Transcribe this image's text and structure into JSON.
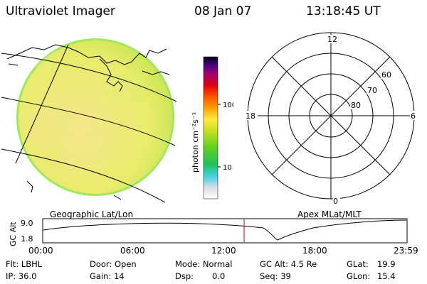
{
  "header": {
    "title": "Ultraviolet Imager",
    "date": "08 Jan 07",
    "time": "13:18:45 UT"
  },
  "colorbar": {
    "unit_label": "photon cm⁻²s⁻¹",
    "ticks": [
      "100",
      "10"
    ]
  },
  "panels": {
    "geo_label": "Geographic Lat/Lon",
    "apex_label": "Apex MLat/MLT"
  },
  "polar": {
    "mlt_labels": [
      "12",
      "18",
      "6",
      "0"
    ],
    "lat_labels": [
      "60",
      "70",
      "80"
    ]
  },
  "timeline": {
    "axis_title": "GC Alt",
    "y_ticks": [
      "9.0",
      "1.8"
    ],
    "x_ticks": [
      "00:00",
      "06:00",
      "12:00",
      "18:00",
      "23:59"
    ],
    "marker_color": "#cc0000"
  },
  "status": {
    "flt": "Flt: LBHL",
    "ip": "IP: 36.0",
    "door": "Door: Open",
    "gain": "Gain: 14",
    "mode": "Mode: Normal",
    "dsp_label": "Dsp:",
    "dsp_value": "0.0",
    "gc_alt": "GC Alt: 4.5 Re",
    "seq": "Seq: 39",
    "glat_label": "GLat:",
    "glat_value": "19.9",
    "glon_label": "GLon:",
    "glon_value": "15.4"
  }
}
